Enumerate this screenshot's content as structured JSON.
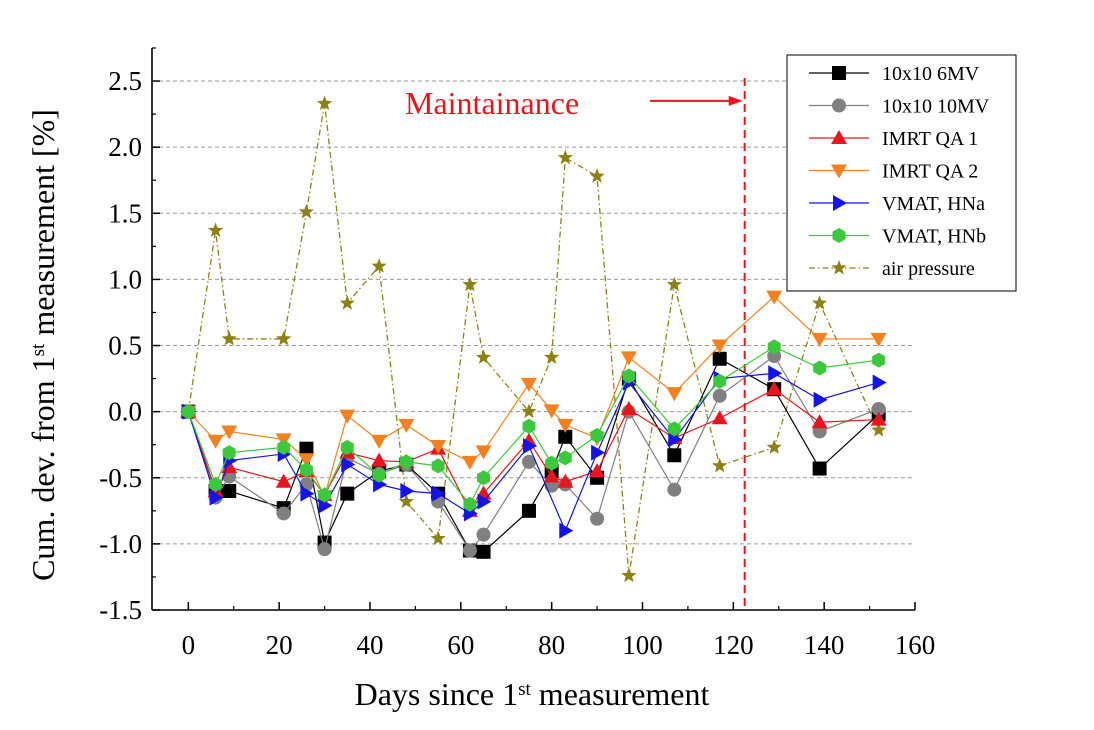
{
  "chart_data": {
    "type": "line",
    "xlabel": "Days since 1st measurement",
    "xlabel_parts": {
      "pre": "Days since 1",
      "sup": "st",
      "post": " measurement"
    },
    "ylabel": "Cum. dev. from 1st measurement [%]",
    "ylabel_parts": {
      "pre": "Cum. dev. from 1",
      "sup": "st",
      "post": " measurement [%]"
    },
    "xlim": [
      -8,
      160
    ],
    "ylim": [
      -1.5,
      2.75
    ],
    "x_ticks": [
      0,
      20,
      40,
      60,
      80,
      100,
      120,
      140,
      160
    ],
    "x_tick_labels": [
      "0",
      "20",
      "40",
      "60",
      "80",
      "100",
      "120",
      "140",
      "160"
    ],
    "y_ticks": [
      -1.5,
      -1.0,
      -0.5,
      0.0,
      0.5,
      1.0,
      1.5,
      2.0,
      2.5
    ],
    "y_tick_labels": [
      "-1.5",
      "-1.0",
      "-0.5",
      "0.0",
      "0.5",
      "1.0",
      "1.5",
      "2.0",
      "2.5"
    ],
    "grid": "horizontal dashed",
    "legend_position": "top-right",
    "annotation": {
      "text": "Maintainance",
      "color": "#e8141e",
      "x": 122.5,
      "y": 2.35
    },
    "vline": {
      "x": 122.5,
      "color": "#e8141e",
      "style": "dashed"
    },
    "series": [
      {
        "name": "10x10 6MV",
        "color": "#000000",
        "marker": "square",
        "points": [
          [
            0,
            0
          ],
          [
            6,
            -0.6
          ],
          [
            9,
            -0.6
          ],
          [
            21,
            -0.73
          ],
          [
            26,
            -0.28
          ],
          [
            30,
            -0.99
          ],
          [
            35,
            -0.62
          ],
          [
            42,
            -0.45
          ],
          [
            48,
            -0.4
          ],
          [
            55,
            -0.62
          ],
          [
            62,
            -1.05
          ],
          [
            65,
            -1.06
          ],
          [
            75,
            -0.75
          ],
          [
            80,
            -0.45
          ],
          [
            83,
            -0.19
          ],
          [
            90,
            -0.5
          ],
          [
            97,
            0.25
          ],
          [
            107,
            -0.33
          ],
          [
            117,
            0.4
          ],
          [
            129,
            0.17
          ],
          [
            139,
            -0.43
          ],
          [
            152,
            -0.02
          ]
        ]
      },
      {
        "name": "10x10 10MV",
        "color": "#808080",
        "marker": "circle",
        "points": [
          [
            0,
            0
          ],
          [
            6,
            -0.65
          ],
          [
            9,
            -0.49
          ],
          [
            21,
            -0.77
          ],
          [
            26,
            -0.55
          ],
          [
            30,
            -1.04
          ],
          [
            35,
            -0.35
          ],
          [
            42,
            -0.47
          ],
          [
            48,
            -0.4
          ],
          [
            55,
            -0.68
          ],
          [
            62,
            -1.05
          ],
          [
            65,
            -0.93
          ],
          [
            75,
            -0.38
          ],
          [
            80,
            -0.56
          ],
          [
            83,
            -0.55
          ],
          [
            90,
            -0.81
          ],
          [
            97,
            0.0
          ],
          [
            107,
            -0.59
          ],
          [
            117,
            0.12
          ],
          [
            129,
            0.42
          ],
          [
            139,
            -0.15
          ],
          [
            152,
            0.02
          ]
        ]
      },
      {
        "name": "IMRT QA 1",
        "color": "#e8141e",
        "marker": "triangle-up",
        "points": [
          [
            0,
            0
          ],
          [
            6,
            -0.6
          ],
          [
            9,
            -0.42
          ],
          [
            21,
            -0.53
          ],
          [
            26,
            -0.45
          ],
          [
            30,
            -0.63
          ],
          [
            35,
            -0.31
          ],
          [
            42,
            -0.37
          ],
          [
            48,
            -0.38
          ],
          [
            55,
            -0.28
          ],
          [
            62,
            -0.75
          ],
          [
            65,
            -0.62
          ],
          [
            75,
            -0.22
          ],
          [
            80,
            -0.49
          ],
          [
            83,
            -0.53
          ],
          [
            90,
            -0.45
          ],
          [
            97,
            0.02
          ],
          [
            107,
            -0.2
          ],
          [
            117,
            -0.05
          ],
          [
            129,
            0.17
          ],
          [
            139,
            -0.08
          ],
          [
            152,
            -0.06
          ]
        ]
      },
      {
        "name": "IMRT QA 2",
        "color": "#f4811f",
        "marker": "triangle-down",
        "points": [
          [
            0,
            0
          ],
          [
            6,
            -0.22
          ],
          [
            9,
            -0.15
          ],
          [
            21,
            -0.21
          ],
          [
            26,
            -0.36
          ],
          [
            30,
            -0.64
          ],
          [
            35,
            -0.03
          ],
          [
            42,
            -0.22
          ],
          [
            48,
            -0.1
          ],
          [
            55,
            -0.26
          ],
          [
            62,
            -0.38
          ],
          [
            65,
            -0.3
          ],
          [
            75,
            0.21
          ],
          [
            80,
            0.01
          ],
          [
            83,
            -0.1
          ],
          [
            90,
            -0.2
          ],
          [
            97,
            0.41
          ],
          [
            107,
            0.14
          ],
          [
            117,
            0.5
          ],
          [
            129,
            0.87
          ],
          [
            139,
            0.55
          ],
          [
            152,
            0.55
          ]
        ]
      },
      {
        "name": "VMAT, HNa",
        "color": "#1414e6",
        "marker": "triangle-right",
        "points": [
          [
            0,
            0
          ],
          [
            6,
            -0.65
          ],
          [
            9,
            -0.37
          ],
          [
            21,
            -0.32
          ],
          [
            26,
            -0.62
          ],
          [
            30,
            -0.71
          ],
          [
            35,
            -0.4
          ],
          [
            42,
            -0.55
          ],
          [
            48,
            -0.6
          ],
          [
            55,
            -0.62
          ],
          [
            62,
            -0.77
          ],
          [
            65,
            -0.68
          ],
          [
            75,
            -0.26
          ],
          [
            83,
            -0.9
          ],
          [
            90,
            -0.31
          ],
          [
            97,
            0.22
          ],
          [
            107,
            -0.21
          ],
          [
            117,
            0.25
          ],
          [
            129,
            0.29
          ],
          [
            139,
            0.09
          ],
          [
            152,
            0.22
          ]
        ]
      },
      {
        "name": "VMAT, HNb",
        "color": "#3cc83c",
        "marker": "hexagon",
        "points": [
          [
            0,
            0
          ],
          [
            6,
            -0.55
          ],
          [
            9,
            -0.31
          ],
          [
            21,
            -0.27
          ],
          [
            26,
            -0.44
          ],
          [
            30,
            -0.63
          ],
          [
            35,
            -0.27
          ],
          [
            42,
            -0.48
          ],
          [
            48,
            -0.38
          ],
          [
            55,
            -0.41
          ],
          [
            62,
            -0.7
          ],
          [
            65,
            -0.5
          ],
          [
            75,
            -0.11
          ],
          [
            80,
            -0.39
          ],
          [
            83,
            -0.35
          ],
          [
            90,
            -0.18
          ],
          [
            97,
            0.27
          ],
          [
            107,
            -0.13
          ],
          [
            117,
            0.23
          ],
          [
            129,
            0.49
          ],
          [
            139,
            0.33
          ],
          [
            152,
            0.39
          ]
        ]
      },
      {
        "name": "air pressure",
        "color": "#8c8214",
        "marker": "star",
        "line": "dashdot",
        "points": [
          [
            0,
            0
          ],
          [
            6,
            1.37
          ],
          [
            9,
            0.55
          ],
          [
            21,
            0.55
          ],
          [
            26,
            1.51
          ],
          [
            30,
            2.33
          ],
          [
            35,
            0.82
          ],
          [
            42,
            1.1
          ],
          [
            48,
            -0.68
          ],
          [
            55,
            -0.96
          ],
          [
            62,
            0.96
          ],
          [
            65,
            0.41
          ],
          [
            75,
            0.0
          ],
          [
            80,
            0.41
          ],
          [
            83,
            1.92
          ],
          [
            90,
            1.78
          ],
          [
            97,
            -1.24
          ],
          [
            107,
            0.96
          ],
          [
            117,
            -0.41
          ],
          [
            129,
            -0.27
          ],
          [
            139,
            0.82
          ],
          [
            152,
            -0.14
          ]
        ]
      }
    ]
  }
}
